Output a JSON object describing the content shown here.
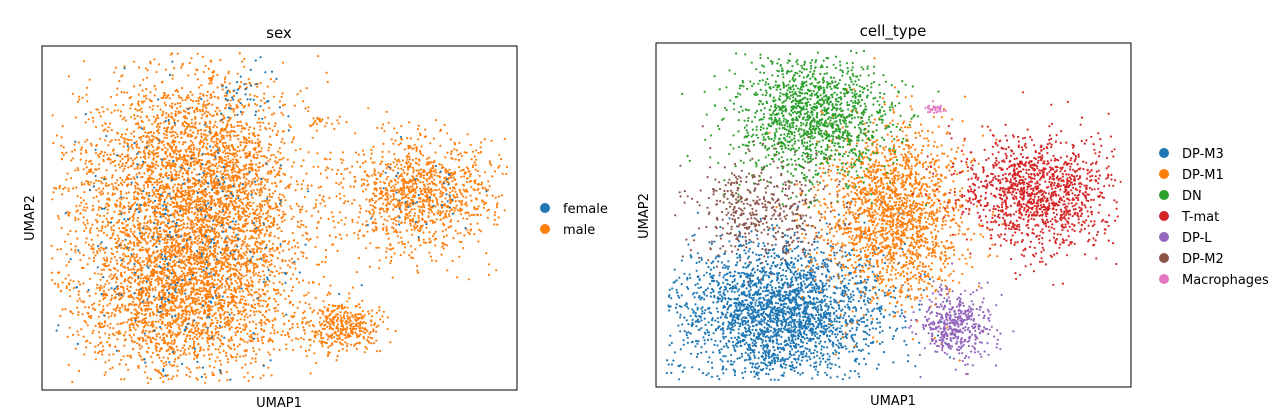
{
  "chart_data": [
    {
      "type": "scatter",
      "title": "sex",
      "xlabel": "UMAP1",
      "ylabel": "UMAP2",
      "grid": false,
      "ticks": false,
      "legend_position": "right",
      "point_size": "small",
      "series": [
        {
          "name": "female",
          "color": "#1f77b4"
        },
        {
          "name": "male",
          "color": "#ff7f0e"
        }
      ],
      "overlay_order": [
        "female",
        "male"
      ],
      "clusters": [
        {
          "series": "male",
          "cx": 0.3,
          "cy": 0.62,
          "rx": 0.22,
          "ry": 0.28,
          "n": 2600
        },
        {
          "series": "male",
          "cx": 0.28,
          "cy": 0.28,
          "rx": 0.2,
          "ry": 0.22,
          "n": 2400
        },
        {
          "series": "male",
          "cx": 0.4,
          "cy": 0.5,
          "rx": 0.13,
          "ry": 0.3,
          "n": 900
        },
        {
          "series": "male",
          "cx": 0.8,
          "cy": 0.57,
          "rx": 0.14,
          "ry": 0.15,
          "n": 1100
        },
        {
          "series": "male",
          "cx": 0.63,
          "cy": 0.18,
          "rx": 0.08,
          "ry": 0.07,
          "n": 380
        },
        {
          "series": "male",
          "cx": 0.58,
          "cy": 0.78,
          "rx": 0.03,
          "ry": 0.02,
          "n": 20
        },
        {
          "series": "male",
          "cx": 0.62,
          "cy": 0.55,
          "rx": 0.07,
          "ry": 0.15,
          "n": 35
        },
        {
          "series": "female",
          "cx": 0.3,
          "cy": 0.45,
          "rx": 0.22,
          "ry": 0.38,
          "n": 330
        },
        {
          "series": "female",
          "cx": 0.43,
          "cy": 0.85,
          "rx": 0.06,
          "ry": 0.06,
          "n": 35
        },
        {
          "series": "female",
          "cx": 0.8,
          "cy": 0.57,
          "rx": 0.12,
          "ry": 0.14,
          "n": 40
        }
      ]
    },
    {
      "type": "scatter",
      "title": "cell_type",
      "xlabel": "UMAP1",
      "ylabel": "UMAP2",
      "grid": false,
      "ticks": false,
      "legend_position": "right",
      "point_size": "small",
      "series": [
        {
          "name": "DP-M3",
          "color": "#1f77b4"
        },
        {
          "name": "DP-M1",
          "color": "#ff7f0e"
        },
        {
          "name": "DN",
          "color": "#2ca02c"
        },
        {
          "name": "T-mat",
          "color": "#d62728"
        },
        {
          "name": "DP-L",
          "color": "#9467bd"
        },
        {
          "name": "DP-M2",
          "color": "#8c564b"
        },
        {
          "name": "Macrophages",
          "color": "#e377c2"
        }
      ],
      "clusters": [
        {
          "series": "DP-M3",
          "cx": 0.26,
          "cy": 0.22,
          "rx": 0.2,
          "ry": 0.18,
          "n": 2600
        },
        {
          "series": "DP-M1",
          "cx": 0.5,
          "cy": 0.5,
          "rx": 0.14,
          "ry": 0.23,
          "n": 1900
        },
        {
          "series": "DN",
          "cx": 0.33,
          "cy": 0.78,
          "rx": 0.15,
          "ry": 0.17,
          "n": 1400
        },
        {
          "series": "T-mat",
          "cx": 0.8,
          "cy": 0.57,
          "rx": 0.14,
          "ry": 0.15,
          "n": 1300
        },
        {
          "series": "DP-L",
          "cx": 0.63,
          "cy": 0.18,
          "rx": 0.07,
          "ry": 0.09,
          "n": 450
        },
        {
          "series": "DP-M2",
          "cx": 0.22,
          "cy": 0.52,
          "rx": 0.14,
          "ry": 0.14,
          "n": 480
        },
        {
          "series": "Macrophages",
          "cx": 0.59,
          "cy": 0.81,
          "rx": 0.025,
          "ry": 0.015,
          "n": 30
        }
      ]
    }
  ]
}
